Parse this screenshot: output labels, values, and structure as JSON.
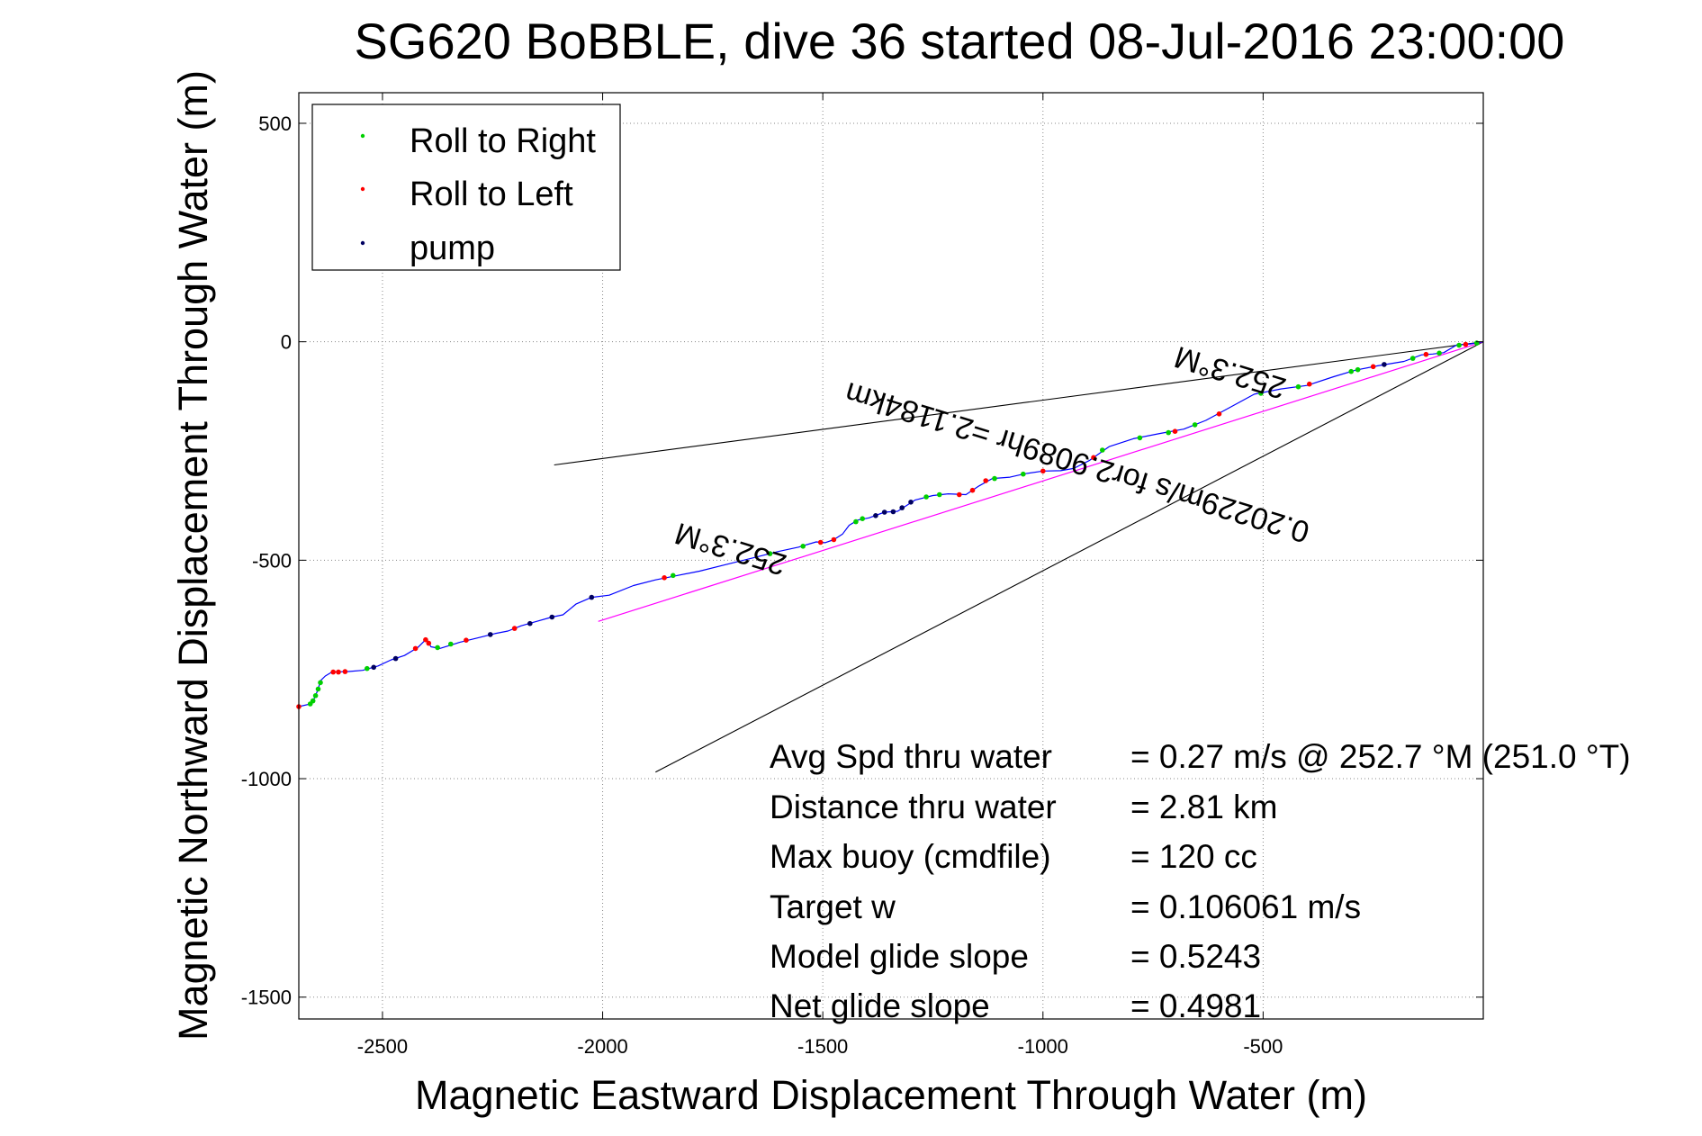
{
  "chart_data": {
    "type": "line",
    "title": "SG620 BoBBLE, dive 36 started 08-Jul-2016 23:00:00",
    "xlabel": "Magnetic Eastward Displacement Through Water (m)",
    "ylabel": "Magnetic Northward Displacement Through Water (m)",
    "xlim": [
      -2690,
      0
    ],
    "ylim": [
      -1550,
      570
    ],
    "xticks": [
      -2500,
      -2000,
      -1500,
      -1000,
      -500
    ],
    "yticks": [
      500,
      0,
      -500,
      -1000,
      -1500
    ],
    "grid": true,
    "legend": {
      "placement": "top-left",
      "entries": [
        {
          "label": "Roll to Right",
          "color": "#00d000"
        },
        {
          "label": "Roll to Left",
          "color": "#ff0000"
        },
        {
          "label": "pump",
          "color": "#000060"
        }
      ]
    },
    "track": {
      "name": "glider track",
      "color": "#0000ff",
      "points": [
        [
          0,
          0
        ],
        [
          -30,
          -5
        ],
        [
          -60,
          -7
        ],
        [
          -90,
          -25
        ],
        [
          -115,
          -28
        ],
        [
          -140,
          -30
        ],
        [
          -180,
          -45
        ],
        [
          -240,
          -55
        ],
        [
          -290,
          -65
        ],
        [
          -340,
          -80
        ],
        [
          -400,
          -100
        ],
        [
          -460,
          -108
        ],
        [
          -520,
          -120
        ],
        [
          -575,
          -150
        ],
        [
          -630,
          -180
        ],
        [
          -680,
          -200
        ],
        [
          -735,
          -210
        ],
        [
          -795,
          -222
        ],
        [
          -850,
          -240
        ],
        [
          -895,
          -272
        ],
        [
          -930,
          -290
        ],
        [
          -960,
          -295
        ],
        [
          -1000,
          -296
        ],
        [
          -1040,
          -302
        ],
        [
          -1075,
          -310
        ],
        [
          -1115,
          -313
        ],
        [
          -1145,
          -330
        ],
        [
          -1175,
          -350
        ],
        [
          -1215,
          -348
        ],
        [
          -1250,
          -352
        ],
        [
          -1290,
          -362
        ],
        [
          -1330,
          -388
        ],
        [
          -1360,
          -390
        ],
        [
          -1395,
          -403
        ],
        [
          -1420,
          -408
        ],
        [
          -1440,
          -420
        ],
        [
          -1455,
          -440
        ],
        [
          -1475,
          -453
        ],
        [
          -1495,
          -460
        ],
        [
          -1515,
          -458
        ],
        [
          -1555,
          -470
        ],
        [
          -1600,
          -480
        ],
        [
          -1660,
          -495
        ],
        [
          -1720,
          -510
        ],
        [
          -1780,
          -525
        ],
        [
          -1830,
          -535
        ],
        [
          -1880,
          -545
        ],
        [
          -1930,
          -558
        ],
        [
          -1985,
          -580
        ],
        [
          -2025,
          -585
        ],
        [
          -2060,
          -600
        ],
        [
          -2090,
          -625
        ],
        [
          -2115,
          -630
        ],
        [
          -2150,
          -640
        ],
        [
          -2185,
          -650
        ],
        [
          -2215,
          -662
        ],
        [
          -2245,
          -668
        ],
        [
          -2285,
          -678
        ],
        [
          -2325,
          -688
        ],
        [
          -2370,
          -702
        ],
        [
          -2390,
          -698
        ],
        [
          -2400,
          -680
        ],
        [
          -2420,
          -700
        ],
        [
          -2450,
          -718
        ],
        [
          -2480,
          -728
        ],
        [
          -2510,
          -742
        ],
        [
          -2545,
          -752
        ],
        [
          -2580,
          -755
        ],
        [
          -2615,
          -756
        ],
        [
          -2630,
          -765
        ],
        [
          -2640,
          -775
        ],
        [
          -2648,
          -800
        ],
        [
          -2660,
          -828
        ],
        [
          -2690,
          -835
        ]
      ]
    },
    "avg_line": {
      "name": "average current",
      "color": "#ff00ff",
      "points": [
        [
          0,
          0
        ],
        [
          -2010,
          -640
        ]
      ]
    },
    "cone": {
      "color": "#000000",
      "points": [
        [
          -2110,
          -282
        ],
        [
          0,
          0
        ],
        [
          -1880,
          -985
        ]
      ]
    },
    "roll_right": [
      [
        -15,
        -3
      ],
      [
        -55,
        -8
      ],
      [
        -100,
        -26
      ],
      [
        -160,
        -38
      ],
      [
        -285,
        -64
      ],
      [
        -300,
        -68
      ],
      [
        -420,
        -103
      ],
      [
        -505,
        -118
      ],
      [
        -655,
        -190
      ],
      [
        -715,
        -208
      ],
      [
        -780,
        -220
      ],
      [
        -865,
        -248
      ],
      [
        -1045,
        -303
      ],
      [
        -1110,
        -313
      ],
      [
        -1235,
        -350
      ],
      [
        -1265,
        -355
      ],
      [
        -1410,
        -405
      ],
      [
        -1425,
        -412
      ],
      [
        -1545,
        -468
      ],
      [
        -1620,
        -485
      ],
      [
        -1840,
        -535
      ],
      [
        -2345,
        -692
      ],
      [
        -2375,
        -700
      ],
      [
        -2535,
        -748
      ],
      [
        -2641,
        -780
      ],
      [
        -2646,
        -795
      ],
      [
        -2652,
        -810
      ],
      [
        -2658,
        -822
      ],
      [
        -2664,
        -829
      ]
    ],
    "roll_left": [
      [
        -40,
        -6
      ],
      [
        -130,
        -29
      ],
      [
        -250,
        -57
      ],
      [
        -395,
        -97
      ],
      [
        -600,
        -165
      ],
      [
        -700,
        -205
      ],
      [
        -885,
        -265
      ],
      [
        -1000,
        -296
      ],
      [
        -1130,
        -318
      ],
      [
        -1160,
        -340
      ],
      [
        -1190,
        -350
      ],
      [
        -1475,
        -453
      ],
      [
        -1505,
        -459
      ],
      [
        -1860,
        -540
      ],
      [
        -2200,
        -656
      ],
      [
        -2310,
        -683
      ],
      [
        -2395,
        -690
      ],
      [
        -2402,
        -682
      ],
      [
        -2425,
        -702
      ],
      [
        -2585,
        -755
      ],
      [
        -2600,
        -756
      ],
      [
        -2612,
        -756
      ],
      [
        -2690,
        -835
      ]
    ],
    "pump": [
      [
        -225,
        -52
      ],
      [
        -1300,
        -367
      ],
      [
        -1320,
        -380
      ],
      [
        -1340,
        -389
      ],
      [
        -1360,
        -390
      ],
      [
        -1380,
        -398
      ],
      [
        -2025,
        -585
      ],
      [
        -2115,
        -630
      ],
      [
        -2165,
        -645
      ],
      [
        -2255,
        -670
      ],
      [
        -2470,
        -725
      ],
      [
        -2520,
        -745
      ]
    ],
    "annotations": {
      "heading_near": "252.3°M",
      "heading_far": "252.3°M",
      "current": "0.20229m/s for2.9089hr =2.1184km"
    },
    "stats": [
      {
        "label": "Avg Spd thru water",
        "value": "=  0.27 m/s @ 252.7 °M (251.0 °T)"
      },
      {
        "label": "Distance thru water",
        "value": "=  2.81 km"
      },
      {
        "label": "Max buoy (cmdfile)",
        "value": "= 120 cc"
      },
      {
        "label": "Target w",
        "value": "= 0.106061 m/s"
      },
      {
        "label": "Model glide slope",
        "value": "= 0.5243"
      },
      {
        "label": "Net glide slope",
        "value": "= 0.4981"
      }
    ]
  }
}
